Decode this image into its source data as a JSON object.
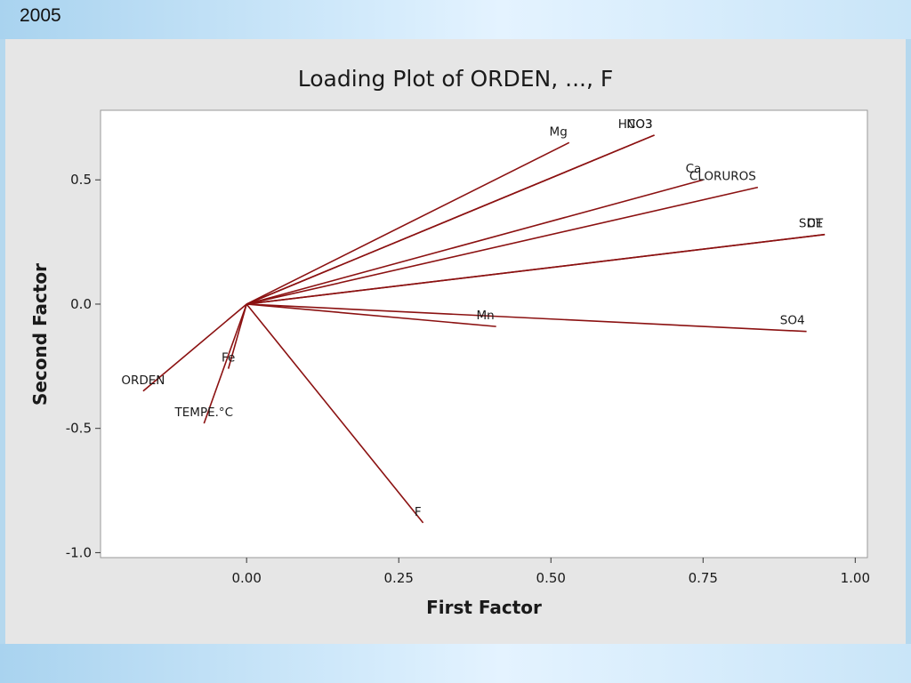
{
  "slide": {
    "label": "2005"
  },
  "chart_data": {
    "type": "scatter",
    "subtype": "loading-plot",
    "title": "Loading Plot of ORDEN, ..., F",
    "xlabel": "First Factor",
    "ylabel": "Second Factor",
    "xlim": [
      -0.24,
      1.02
    ],
    "ylim": [
      -1.02,
      0.78
    ],
    "xticks": [
      0.0,
      0.25,
      0.5,
      0.75,
      1.0
    ],
    "xtick_labels": [
      "0.00",
      "0.25",
      "0.50",
      "0.75",
      "1.00"
    ],
    "yticks": [
      0.5,
      0.0,
      -0.5,
      -1.0
    ],
    "ytick_labels": [
      "0.5",
      "0.0",
      "-0.5",
      "-1.0"
    ],
    "grid": false,
    "line_color": "#8b1111",
    "plot_background": "#ffffff",
    "panel_background": "#e6e6e6",
    "loadings": [
      {
        "name": "Mg",
        "x": 0.53,
        "y": 0.65,
        "label_anchor": "end"
      },
      {
        "name": "NO3",
        "x": 0.67,
        "y": 0.68,
        "label_anchor": "end"
      },
      {
        "name": "HCO3",
        "x": 0.67,
        "y": 0.68,
        "label_anchor": "end"
      },
      {
        "name": "Ca",
        "x": 0.75,
        "y": 0.5,
        "label_anchor": "end"
      },
      {
        "name": "CLORUROS",
        "x": 0.84,
        "y": 0.47,
        "label_anchor": "end"
      },
      {
        "name": "CE",
        "x": 0.95,
        "y": 0.28,
        "label_anchor": "end"
      },
      {
        "name": "SDT",
        "x": 0.95,
        "y": 0.28,
        "label_anchor": "end"
      },
      {
        "name": "SO4",
        "x": 0.92,
        "y": -0.11,
        "label_anchor": "end"
      },
      {
        "name": "Mn",
        "x": 0.41,
        "y": -0.09,
        "label_anchor": "end"
      },
      {
        "name": "F",
        "x": 0.29,
        "y": -0.88,
        "label_anchor": "end"
      },
      {
        "name": "Fe",
        "x": -0.03,
        "y": -0.26,
        "label_anchor": "middle"
      },
      {
        "name": "TEMPE.°C",
        "x": -0.07,
        "y": -0.48,
        "label_anchor": "middle"
      },
      {
        "name": "ORDEN",
        "x": -0.17,
        "y": -0.35,
        "label_anchor": "middle"
      }
    ]
  }
}
